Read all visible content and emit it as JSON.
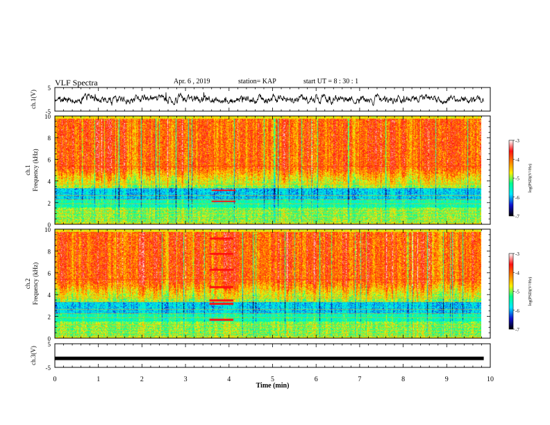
{
  "header": {
    "title": "VLF Spectra",
    "date": "Apr. 6 , 2019",
    "station": "station= KAP",
    "start_ut": "start UT = 8 : 30 : 1"
  },
  "chart_data": [
    {
      "type": "line",
      "name": "ch1-waveform",
      "ylabel": "ch.1(V)",
      "yticks": [
        "5",
        "-5"
      ],
      "ylim": [
        -5,
        5
      ],
      "xlim": [
        0,
        10
      ],
      "note_style": "dense noisy waveform, mean near 0, amplitude about 1.5 V"
    },
    {
      "type": "heatmap",
      "name": "ch1-spectrogram",
      "ylabel": "ch.1\nFrequency (kHz)",
      "yticks": [
        "0",
        "2",
        "4",
        "6",
        "8",
        "10"
      ],
      "ylim": [
        0,
        10
      ],
      "xlim": [
        0,
        9.8
      ],
      "colorbar": {
        "label": "log(PSD)(V²/Hz)",
        "ticks": [
          "-3",
          "-4",
          "-5",
          "-6",
          "-7"
        ],
        "range": [
          -7,
          -3
        ]
      },
      "bands": [
        {
          "from_khz": 0,
          "to_khz": 1.5,
          "level": "green-yellow"
        },
        {
          "from_khz": 1.5,
          "to_khz": 3.3,
          "level": "green-cyan"
        },
        {
          "from_khz": 2.3,
          "to_khz": 3.3,
          "level": "blue"
        },
        {
          "from_khz": 3.3,
          "to_khz": 5,
          "level": "green"
        },
        {
          "from_khz": 5,
          "to_khz": 10,
          "level": "red-yellow"
        }
      ]
    },
    {
      "type": "heatmap",
      "name": "ch2-spectrogram",
      "ylabel": "ch.2\nFrequency (kHz)",
      "yticks": [
        "0",
        "2",
        "4",
        "6",
        "8",
        "10"
      ],
      "ylim": [
        0,
        10
      ],
      "xlim": [
        0,
        9.8
      ],
      "colorbar": {
        "label": "log(PSD)(V²/Hz)",
        "ticks": [
          "-3",
          "-4",
          "-5",
          "-6",
          "-7"
        ],
        "range": [
          -7,
          -3
        ]
      },
      "interference_lines_khz": [
        1.7,
        3.2,
        3.5,
        4.7,
        6.3,
        7.8,
        9.2
      ],
      "interference_time_min": [
        3.55,
        4.1
      ]
    },
    {
      "type": "line",
      "name": "ch3-waveform",
      "ylabel": "ch.3(V)",
      "yticks": [
        "5",
        "-5"
      ],
      "ylim": [
        -5,
        5
      ],
      "xlim": [
        0,
        10
      ],
      "values_note": "flat line near -1 V"
    }
  ],
  "x_axis": {
    "label": "Time (min)",
    "ticks": [
      "0",
      "1",
      "2",
      "3",
      "4",
      "5",
      "6",
      "7",
      "8",
      "9",
      "10"
    ],
    "range": [
      0,
      10
    ]
  },
  "colorscale": [
    "#000000",
    "#1010d0",
    "#00e8ff",
    "#00ff90",
    "#fff000",
    "#ff8000",
    "#ff1010",
    "#ffffff"
  ]
}
